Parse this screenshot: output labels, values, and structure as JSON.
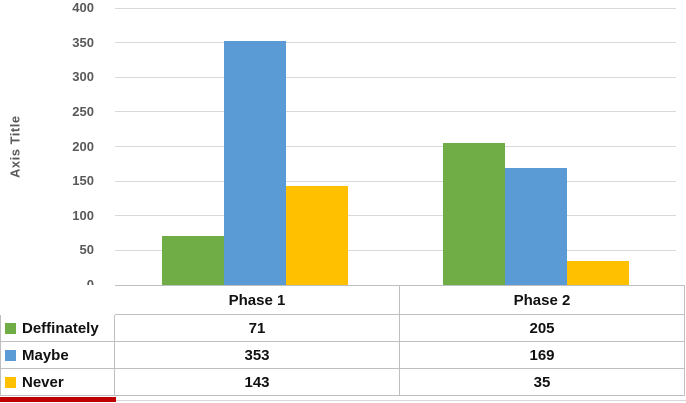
{
  "chart_data": {
    "type": "bar",
    "title": "",
    "xlabel": "",
    "ylabel": "Axis Title",
    "categories": [
      "Phase 1",
      "Phase 2"
    ],
    "series": [
      {
        "name": "Deffinately",
        "color": "#70AD47",
        "values": [
          71,
          205
        ]
      },
      {
        "name": "Maybe",
        "color": "#5B9BD5",
        "values": [
          353,
          169
        ]
      },
      {
        "name": "Never",
        "color": "#FFC000",
        "values": [
          143,
          35
        ]
      }
    ],
    "ylim": [
      0,
      400
    ],
    "ytick_step": 50,
    "y_ticks": [
      400,
      350,
      300,
      250,
      200,
      150,
      100,
      50,
      0
    ],
    "grid": true,
    "gridline_color": "#d9d9d9",
    "tick_label_color": "#595959",
    "legend_position": "data-table-left"
  },
  "decorations": {
    "red_underline_color": "#C00000"
  }
}
